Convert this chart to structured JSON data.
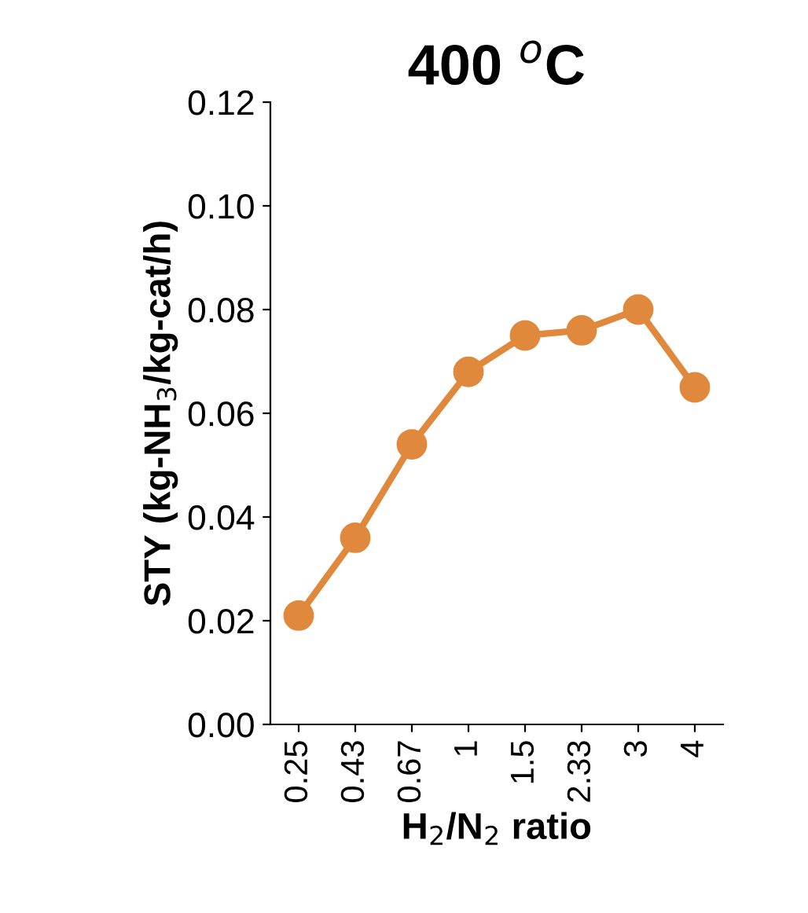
{
  "chart_data": {
    "type": "line",
    "title": "400 $^{o}$C",
    "xlabel": "H$_{2}$/N$_{2}$ ratio",
    "ylabel": "STY (kg-NH$_{3}$/kg-cat/h)",
    "categories": [
      "0.25",
      "0.43",
      "0.67",
      "1",
      "1.5",
      "2.33",
      "3",
      "4"
    ],
    "series": [
      {
        "color": "#e0883c",
        "values": [
          0.021,
          0.036,
          0.054,
          0.068,
          0.075,
          0.076,
          0.08,
          0.065
        ]
      }
    ],
    "ylim": [
      0,
      0.12
    ],
    "yticks": [
      {
        "value": 0,
        "label": "0.00"
      },
      {
        "value": 0.02,
        "label": "0.02"
      },
      {
        "value": 0.04,
        "label": "0.04"
      },
      {
        "value": 0.06,
        "label": "0.06"
      },
      {
        "value": 0.08,
        "label": "0.08"
      },
      {
        "value": 0.1,
        "label": "0.10"
      },
      {
        "value": 0.12,
        "label": "0.12"
      }
    ],
    "marker": "circle",
    "line_style": "solid",
    "grid": false,
    "legend": false
  }
}
